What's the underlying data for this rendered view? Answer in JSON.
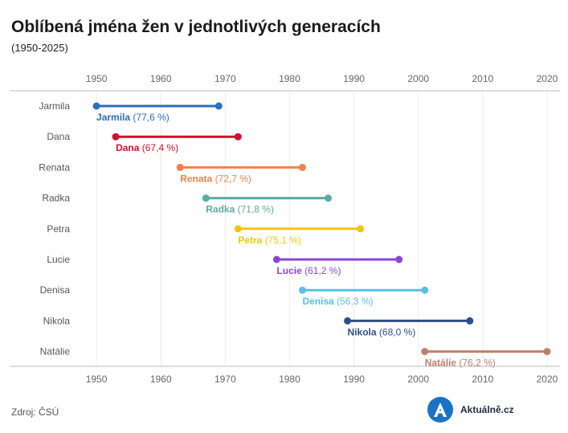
{
  "chart_data": {
    "type": "dumbbell",
    "title": "Oblíbená jména žen v jednotlivých generacích",
    "subtitle": "(1950-2025)",
    "xlabel": "",
    "ylabel": "",
    "xlim": [
      1947,
      2022
    ],
    "x_ticks": [
      1950,
      1960,
      1970,
      1980,
      1990,
      2000,
      2010,
      2020
    ],
    "grid": true,
    "series": [
      {
        "name": "Jarmila",
        "start": 1950,
        "end": 1969,
        "label": "Jarmila",
        "value": "(77,6 %)",
        "color": "#2d6dc4"
      },
      {
        "name": "Dana",
        "start": 1953,
        "end": 1972,
        "label": "Dana",
        "value": "(67,4 %)",
        "color": "#d0112b"
      },
      {
        "name": "Renata",
        "start": 1963,
        "end": 1982,
        "label": "Renata",
        "value": "(72,7 %)",
        "color": "#f0834a"
      },
      {
        "name": "Radka",
        "start": 1967,
        "end": 1986,
        "label": "Radka",
        "value": "(71,8 %)",
        "color": "#5aaba6"
      },
      {
        "name": "Petra",
        "start": 1972,
        "end": 1991,
        "label": "Petra",
        "value": "(75,1 %)",
        "color": "#f2c413"
      },
      {
        "name": "Lucie",
        "start": 1978,
        "end": 1997,
        "label": "Lucie",
        "value": "(61,2 %)",
        "color": "#8a45d6"
      },
      {
        "name": "Denisa",
        "start": 1982,
        "end": 2001,
        "label": "Denisa",
        "value": "(56,3 %)",
        "color": "#5bbfe6"
      },
      {
        "name": "Nikola",
        "start": 1989,
        "end": 2008,
        "label": "Nikola",
        "value": "(68,0 %)",
        "color": "#2d4d8c"
      },
      {
        "name": "Natálie",
        "start": 2001,
        "end": 2020,
        "label": "Natálie",
        "value": "(76,2 %)",
        "color": "#c07f6d"
      }
    ]
  },
  "source": "Zdroj: ČSÚ",
  "logo": {
    "text": "Aktuálně.cz",
    "letter": "A"
  }
}
